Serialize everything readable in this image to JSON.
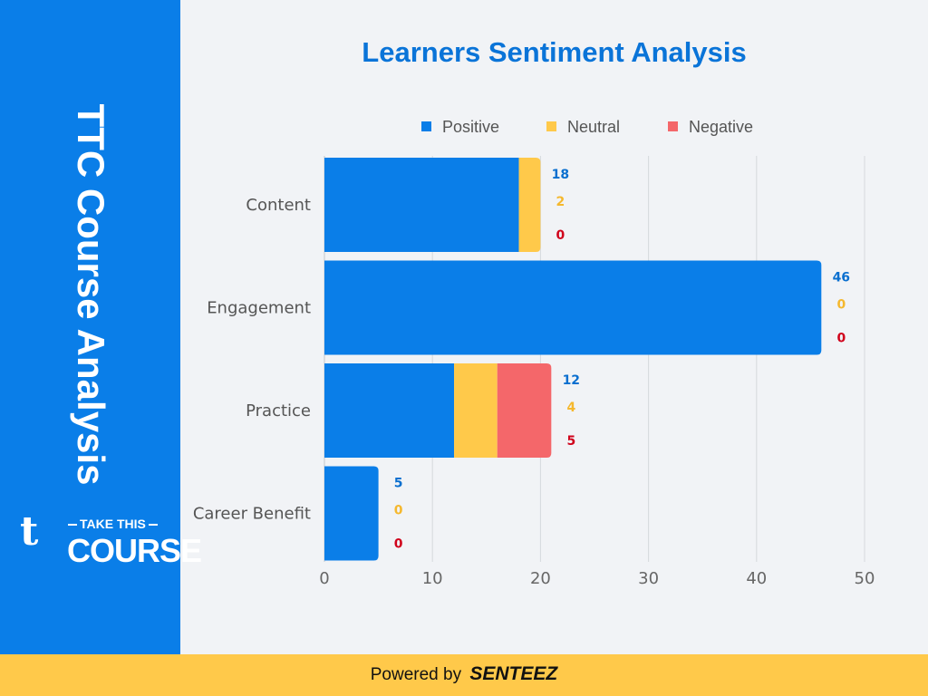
{
  "sidebar": {
    "title": "TTC Course Analysis"
  },
  "logo": {
    "mark": "t",
    "top": "TAKE THIS",
    "bottom": "COURSE"
  },
  "footer": {
    "prefix": "Powered by",
    "brand": "SENTEEZ"
  },
  "colors": {
    "positive": "#0a7ee8",
    "neutral": "#ffc94a",
    "negative": "#f4676a",
    "sidebar": "#0a7ee8",
    "footer": "#ffc94a"
  },
  "chart_data": {
    "type": "bar",
    "orientation": "horizontal",
    "stacked": true,
    "title": "Learners Sentiment Analysis",
    "categories": [
      "Content",
      "Engagement",
      "Practice",
      "Career Benefit"
    ],
    "series": [
      {
        "name": "Positive",
        "values": [
          18,
          46,
          12,
          5
        ]
      },
      {
        "name": "Neutral",
        "values": [
          2,
          0,
          4,
          0
        ]
      },
      {
        "name": "Negative",
        "values": [
          0,
          0,
          5,
          0
        ]
      }
    ],
    "xlim": [
      0,
      50
    ],
    "xticks": [
      0,
      10,
      20,
      30,
      40,
      50
    ],
    "xticklabels": [
      "0",
      "10",
      "20",
      "30",
      "40",
      "50"
    ],
    "grid": true,
    "legend": "top"
  }
}
